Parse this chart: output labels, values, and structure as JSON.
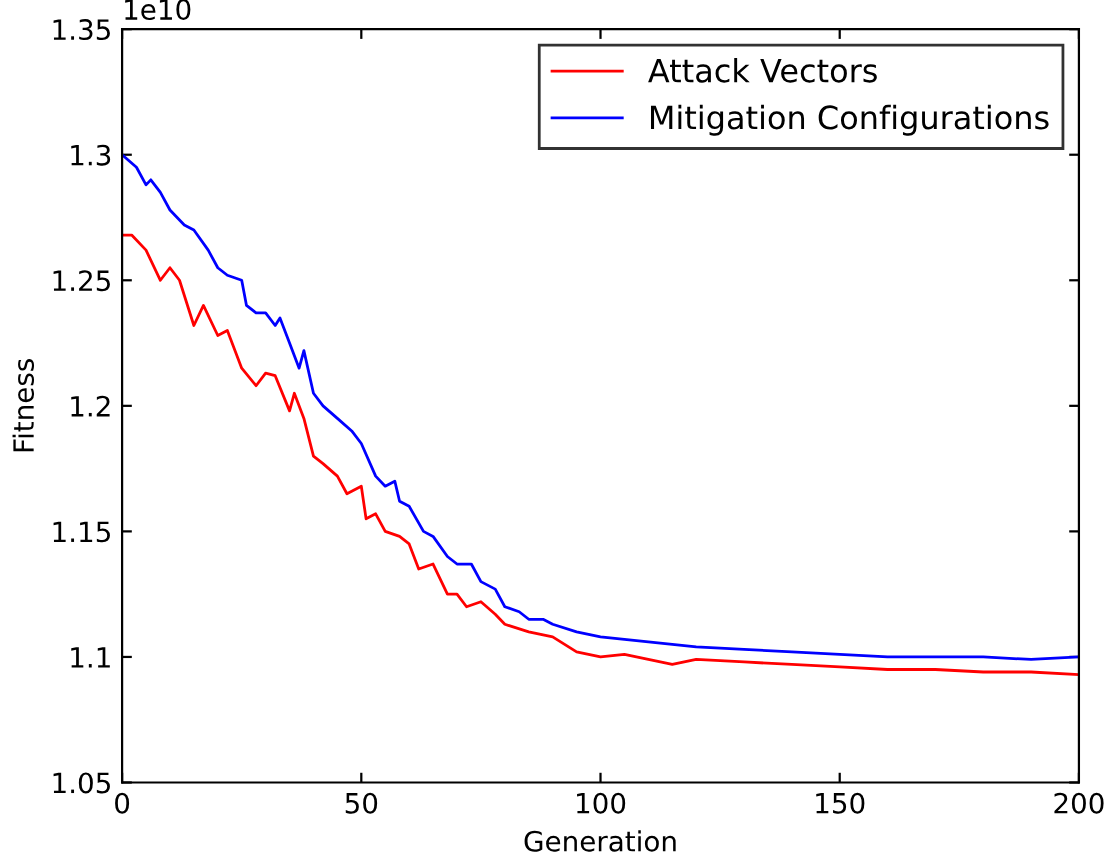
{
  "chart_data": {
    "type": "line",
    "xlabel": "Generation",
    "ylabel": "Fitness",
    "annotations": [
      "1e10"
    ],
    "xlim": [
      0,
      200
    ],
    "xticks": [
      0,
      50,
      100,
      150,
      200
    ],
    "ylim": [
      1.05,
      1.35
    ],
    "yticks": [
      1.05,
      1.1,
      1.15,
      1.2,
      1.25,
      1.3,
      1.35
    ],
    "grid": false,
    "legend": "top right",
    "marker": "none",
    "line_style": "solid",
    "series": [
      {
        "name": "Attack Vectors",
        "color": "#ff0000",
        "x": [
          0,
          2,
          5,
          8,
          10,
          12,
          15,
          17,
          20,
          22,
          25,
          28,
          30,
          32,
          35,
          36,
          38,
          40,
          42,
          45,
          47,
          50,
          51,
          53,
          55,
          58,
          60,
          62,
          65,
          68,
          70,
          72,
          75,
          78,
          80,
          85,
          90,
          95,
          100,
          105,
          110,
          115,
          120,
          130,
          140,
          150,
          160,
          170,
          180,
          190,
          200
        ],
        "values": [
          1.268,
          1.268,
          1.262,
          1.25,
          1.255,
          1.25,
          1.232,
          1.24,
          1.228,
          1.23,
          1.215,
          1.208,
          1.213,
          1.212,
          1.198,
          1.205,
          1.195,
          1.18,
          1.177,
          1.172,
          1.165,
          1.168,
          1.155,
          1.157,
          1.15,
          1.148,
          1.145,
          1.135,
          1.137,
          1.125,
          1.125,
          1.12,
          1.122,
          1.117,
          1.113,
          1.11,
          1.108,
          1.102,
          1.1,
          1.101,
          1.099,
          1.097,
          1.099,
          1.098,
          1.097,
          1.096,
          1.095,
          1.095,
          1.094,
          1.094,
          1.093
        ]
      },
      {
        "name": "Mitigation Configurations",
        "color": "#0000ff",
        "x": [
          0,
          3,
          5,
          6,
          8,
          10,
          13,
          15,
          18,
          20,
          22,
          25,
          26,
          28,
          30,
          32,
          33,
          35,
          37,
          38,
          40,
          42,
          45,
          48,
          50,
          53,
          55,
          57,
          58,
          60,
          63,
          65,
          68,
          70,
          73,
          75,
          78,
          80,
          83,
          85,
          88,
          90,
          95,
          100,
          105,
          110,
          115,
          120,
          130,
          140,
          150,
          160,
          170,
          180,
          190,
          200
        ],
        "values": [
          1.3,
          1.295,
          1.288,
          1.29,
          1.285,
          1.278,
          1.272,
          1.27,
          1.262,
          1.255,
          1.252,
          1.25,
          1.24,
          1.237,
          1.237,
          1.232,
          1.235,
          1.225,
          1.215,
          1.222,
          1.205,
          1.2,
          1.195,
          1.19,
          1.185,
          1.172,
          1.168,
          1.17,
          1.162,
          1.16,
          1.15,
          1.148,
          1.14,
          1.137,
          1.137,
          1.13,
          1.127,
          1.12,
          1.118,
          1.115,
          1.115,
          1.113,
          1.11,
          1.108,
          1.107,
          1.106,
          1.105,
          1.104,
          1.103,
          1.102,
          1.101,
          1.1,
          1.1,
          1.1,
          1.099,
          1.1
        ]
      }
    ]
  }
}
